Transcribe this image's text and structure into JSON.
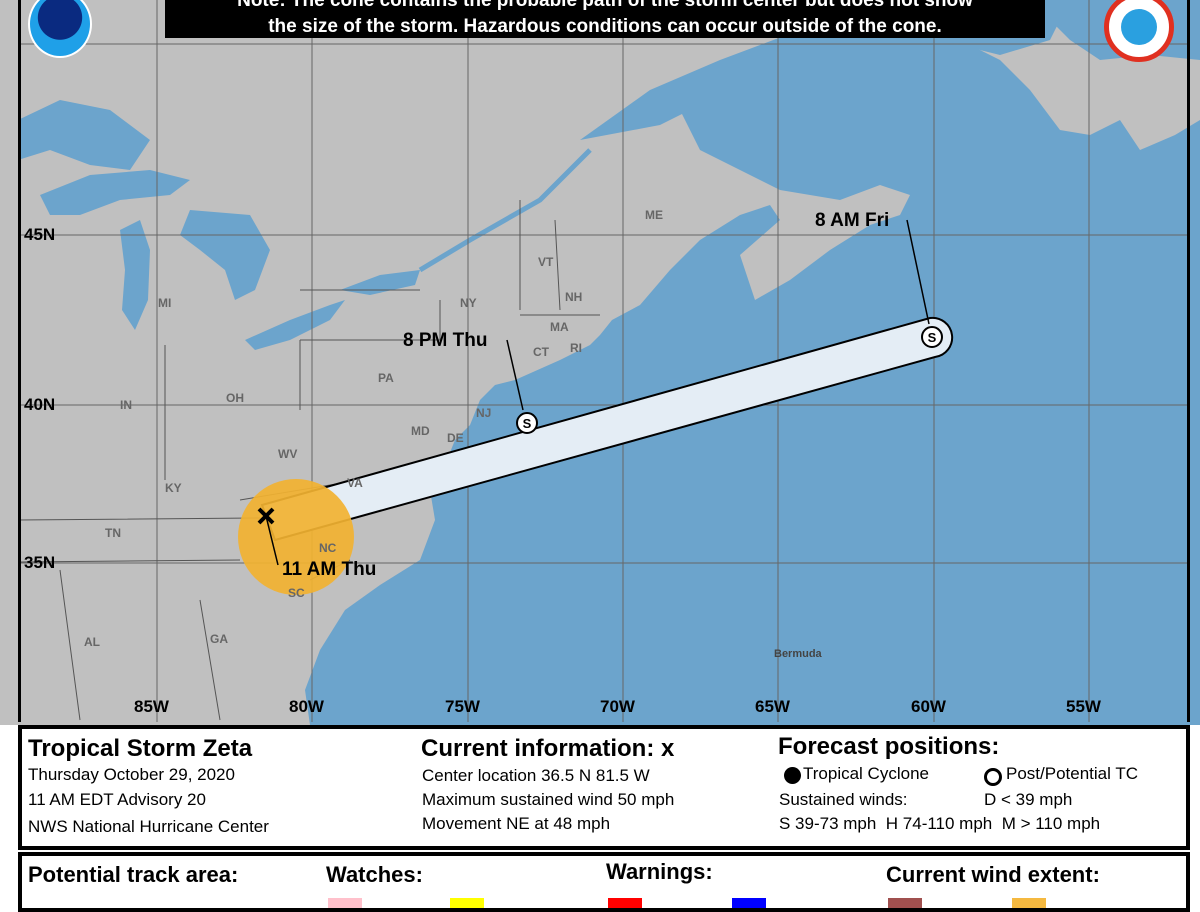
{
  "note": {
    "line1": "Note: The cone contains the probable path of the storm center but does not show",
    "line2": "the size of the storm. Hazardous conditions can occur outside of the cone."
  },
  "logos": {
    "left": "NOAA",
    "right": "NATIONAL WEATHER SERVICE"
  },
  "map": {
    "lat_labels": [
      "45N",
      "40N",
      "35N"
    ],
    "lon_labels": [
      "85W",
      "80W",
      "75W",
      "70W",
      "65W",
      "60W",
      "55W"
    ],
    "state_labels": [
      "ME",
      "VT",
      "NH",
      "NY",
      "MA",
      "CT",
      "RI",
      "MI",
      "PA",
      "NJ",
      "OH",
      "IN",
      "MD",
      "DE",
      "WV",
      "KY",
      "VA",
      "TN",
      "NC",
      "SC",
      "GA",
      "AL",
      "Bermuda"
    ],
    "forecast_labels": [
      "11 AM Thu",
      "8 PM Thu",
      "8 AM Fri"
    ],
    "forecast_points": [
      {
        "time": "8 PM Thu",
        "symbol": "S",
        "lat": 40.4,
        "lon": 72.5
      },
      {
        "time": "8 AM Fri",
        "symbol": "S",
        "lat": 42.7,
        "lon": 59.5
      }
    ],
    "current_position": {
      "time": "11 AM Thu",
      "lat": 36.5,
      "lon": 81.5,
      "symbol": "x"
    },
    "colors": {
      "land": "#c0c0c0",
      "water": "#6ca4cc",
      "cone": "#e4edf5",
      "wind_extent": "#f2b231"
    }
  },
  "info": {
    "storm_name": "Tropical Storm Zeta",
    "date": "Thursday October 29, 2020",
    "advisory": "11 AM EDT Advisory 20",
    "center": "NWS National Hurricane Center",
    "current_title": "Current information: x",
    "center_location": "Center location 36.5 N 81.5 W",
    "max_wind": "Maximum sustained wind 50 mph",
    "movement": "Movement NE at 48 mph",
    "forecast_title": "Forecast positions:",
    "tropical_cyclone": "Tropical Cyclone",
    "post_potential": "Post/Potential TC",
    "sustained_winds": "Sustained winds:",
    "d_range": "D < 39 mph",
    "scale": "S 39-73 mph  H 74-110 mph  M > 110 mph"
  },
  "legend": {
    "track_title": "Potential track area:",
    "watches_title": "Watches:",
    "warnings_title": "Warnings:",
    "wind_title": "Current wind extent:",
    "swatch_colors": [
      "#ffc0cb",
      "#ffff00",
      "#ff0000",
      "#0000ff",
      "#a0504f",
      "#f5b940"
    ]
  }
}
